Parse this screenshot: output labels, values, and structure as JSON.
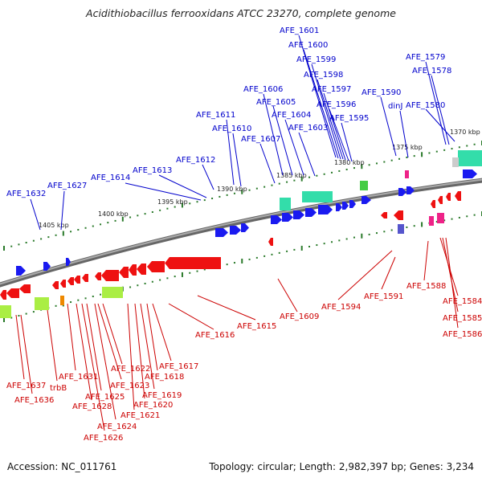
{
  "title": "Acidithiobacillus ferrooxidans ATCC 23270, complete genome",
  "footer": {
    "accession": "Accession: NC_011761",
    "summary": "Topology: circular; Length: 2,982,397 bp; Genes: 3,234"
  },
  "colors": {
    "forward_label": "#0000cc",
    "reverse_label": "#cc0000",
    "forward_gene": "#1a1af0",
    "reverse_gene": "#ee1111",
    "rna_gene": "#33ddaa",
    "pseudo_gene": "#aaee44",
    "backbone": "#888888"
  },
  "scale_labels": [
    "1370 kbp",
    "1375 kbp",
    "1380 kbp",
    "1385 kbp",
    "1390 kbp",
    "1395 kbp",
    "1400 kbp",
    "1405 kbp"
  ],
  "forward_labels": [
    "AFE_1601",
    "AFE_1600",
    "AFE_1599",
    "AFE_1598",
    "AFE_1597",
    "AFE_1596",
    "AFE_1595",
    "AFE_1606",
    "AFE_1605",
    "AFE_1604",
    "AFE_1603",
    "AFE_1607",
    "AFE_1611",
    "AFE_1610",
    "AFE_1612",
    "AFE_1613",
    "AFE_1614",
    "AFE_1627",
    "AFE_1632",
    "AFE_1590",
    "dinJ",
    "AFE_1579",
    "AFE_1578",
    "AFE_1580"
  ],
  "reverse_labels": [
    "AFE_1588",
    "AFE_1594",
    "AFE_1591",
    "AFE_1609",
    "AFE_1615",
    "AFE_1616",
    "AFE_1584",
    "AFE_1585",
    "AFE_1586",
    "AFE_1617",
    "AFE_1618",
    "AFE_1619",
    "AFE_1620",
    "AFE_1621",
    "AFE_1622",
    "AFE_1623",
    "AFE_1624",
    "AFE_1625",
    "AFE_1626",
    "AFE_1628",
    "AFE_1631",
    "trbB",
    "AFE_1637",
    "AFE_1636"
  ]
}
